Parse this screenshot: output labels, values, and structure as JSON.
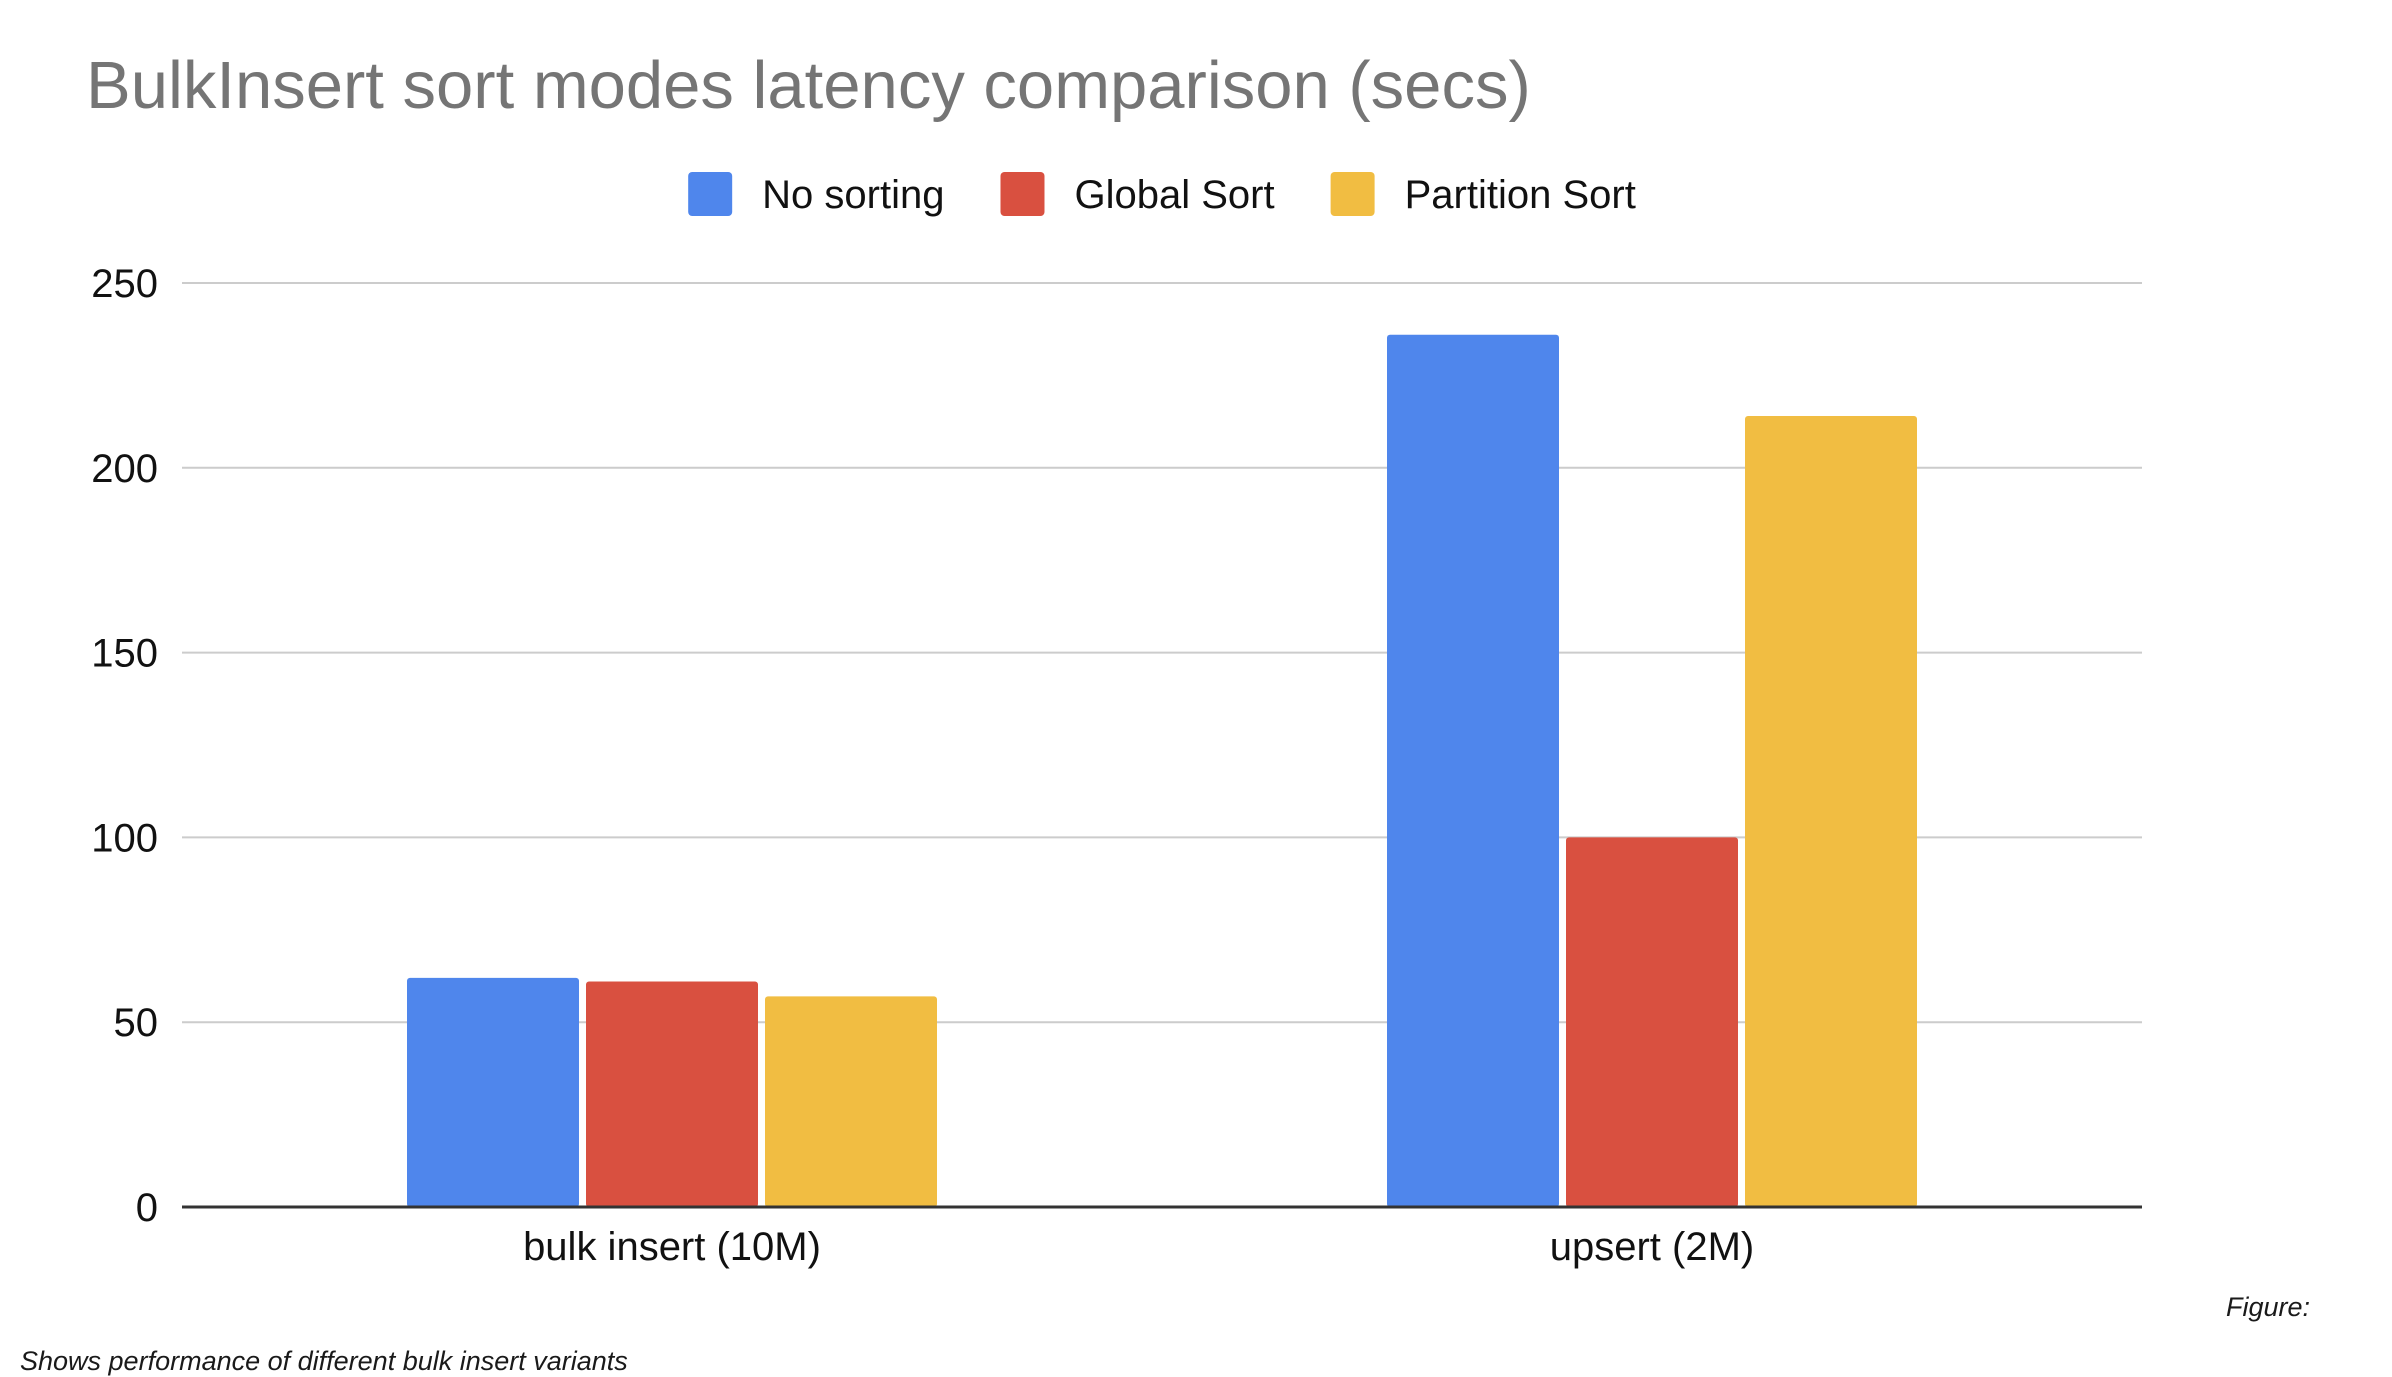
{
  "chart_data": {
    "type": "bar",
    "title": "BulkInsert sort modes latency comparison (secs)",
    "categories": [
      "bulk insert (10M)",
      "upsert (2M)"
    ],
    "series": [
      {
        "name": "No sorting",
        "color": "#4F86EC",
        "values": [
          62,
          236
        ]
      },
      {
        "name": "Global Sort",
        "color": "#D95040",
        "values": [
          61,
          100
        ]
      },
      {
        "name": "Partition Sort",
        "color": "#F1BD42",
        "values": [
          57,
          214
        ]
      }
    ],
    "ylim": [
      0,
      250
    ],
    "yticks": [
      "0",
      "50",
      "100",
      "150",
      "200",
      "250"
    ],
    "xlabel": "",
    "ylabel": "",
    "grid": true,
    "legend_position": "top"
  },
  "figure_label": "Figure:",
  "caption": "Shows performance of different bulk insert variants"
}
